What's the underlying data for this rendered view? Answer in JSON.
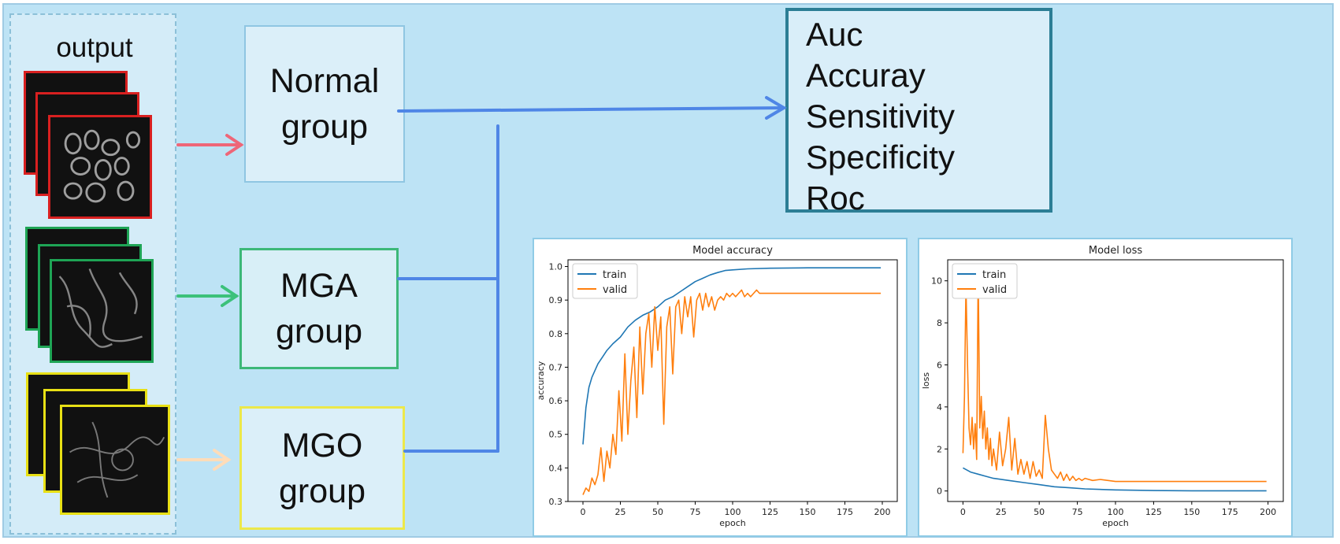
{
  "output_label": "output",
  "groups": {
    "normal": {
      "line1": "Normal",
      "line2": "group"
    },
    "mga": {
      "line1": "MGA",
      "line2": "group"
    },
    "mgo": {
      "line1": "MGO",
      "line2": "group"
    }
  },
  "metrics": [
    "Auc",
    "Accuray",
    "Sensitivity",
    "Specificity",
    "Roc"
  ],
  "colors": {
    "normal_arrow": "#ee6678",
    "mga_arrow": "#3cc17a",
    "mgo_arrow": "#ffdcb8",
    "connector": "#4f86e6",
    "train": "#1f77b4",
    "valid": "#ff7f0e"
  },
  "chart_data": [
    {
      "type": "line",
      "title": "Model accuracy",
      "xlabel": "epoch",
      "ylabel": "accuracy",
      "xlim": [
        -10,
        210
      ],
      "ylim": [
        0.3,
        1.02
      ],
      "xticks": [
        0,
        25,
        50,
        75,
        100,
        125,
        150,
        175,
        200
      ],
      "yticks": [
        0.3,
        0.4,
        0.5,
        0.6,
        0.7,
        0.8,
        0.9,
        1.0
      ],
      "ytick_labels": [
        "0.3",
        "0.4",
        "0.5",
        "0.6",
        "0.7",
        "0.8",
        "0.9",
        "1.0"
      ],
      "legend": "top-left",
      "series": [
        {
          "name": "train",
          "points": [
            [
              0,
              0.47
            ],
            [
              2,
              0.58
            ],
            [
              4,
              0.64
            ],
            [
              6,
              0.67
            ],
            [
              8,
              0.69
            ],
            [
              10,
              0.71
            ],
            [
              13,
              0.73
            ],
            [
              16,
              0.75
            ],
            [
              20,
              0.77
            ],
            [
              25,
              0.79
            ],
            [
              30,
              0.82
            ],
            [
              35,
              0.84
            ],
            [
              40,
              0.855
            ],
            [
              45,
              0.865
            ],
            [
              50,
              0.88
            ],
            [
              55,
              0.9
            ],
            [
              60,
              0.91
            ],
            [
              65,
              0.925
            ],
            [
              70,
              0.94
            ],
            [
              75,
              0.955
            ],
            [
              80,
              0.965
            ],
            [
              85,
              0.975
            ],
            [
              90,
              0.982
            ],
            [
              95,
              0.988
            ],
            [
              100,
              0.99
            ],
            [
              110,
              0.993
            ],
            [
              125,
              0.995
            ],
            [
              150,
              0.996
            ],
            [
              175,
              0.996
            ],
            [
              199,
              0.996
            ]
          ]
        },
        {
          "name": "valid",
          "points": [
            [
              0,
              0.32
            ],
            [
              2,
              0.34
            ],
            [
              4,
              0.33
            ],
            [
              6,
              0.37
            ],
            [
              8,
              0.35
            ],
            [
              10,
              0.38
            ],
            [
              12,
              0.46
            ],
            [
              14,
              0.36
            ],
            [
              16,
              0.45
            ],
            [
              18,
              0.4
            ],
            [
              20,
              0.5
            ],
            [
              22,
              0.44
            ],
            [
              24,
              0.63
            ],
            [
              26,
              0.48
            ],
            [
              28,
              0.74
            ],
            [
              30,
              0.5
            ],
            [
              32,
              0.66
            ],
            [
              34,
              0.76
            ],
            [
              36,
              0.55
            ],
            [
              38,
              0.82
            ],
            [
              40,
              0.62
            ],
            [
              42,
              0.8
            ],
            [
              44,
              0.86
            ],
            [
              46,
              0.7
            ],
            [
              48,
              0.88
            ],
            [
              50,
              0.75
            ],
            [
              52,
              0.85
            ],
            [
              54,
              0.53
            ],
            [
              56,
              0.82
            ],
            [
              58,
              0.88
            ],
            [
              60,
              0.68
            ],
            [
              62,
              0.88
            ],
            [
              64,
              0.9
            ],
            [
              66,
              0.8
            ],
            [
              68,
              0.91
            ],
            [
              70,
              0.85
            ],
            [
              72,
              0.91
            ],
            [
              74,
              0.79
            ],
            [
              76,
              0.9
            ],
            [
              78,
              0.92
            ],
            [
              80,
              0.87
            ],
            [
              82,
              0.92
            ],
            [
              84,
              0.88
            ],
            [
              86,
              0.91
            ],
            [
              88,
              0.87
            ],
            [
              90,
              0.9
            ],
            [
              92,
              0.91
            ],
            [
              94,
              0.9
            ],
            [
              96,
              0.92
            ],
            [
              98,
              0.91
            ],
            [
              100,
              0.92
            ],
            [
              102,
              0.91
            ],
            [
              104,
              0.92
            ],
            [
              106,
              0.93
            ],
            [
              108,
              0.91
            ],
            [
              110,
              0.92
            ],
            [
              112,
              0.91
            ],
            [
              114,
              0.92
            ],
            [
              116,
              0.93
            ],
            [
              118,
              0.92
            ],
            [
              120,
              0.92
            ],
            [
              125,
              0.92
            ],
            [
              130,
              0.92
            ],
            [
              140,
              0.92
            ],
            [
              150,
              0.92
            ],
            [
              160,
              0.92
            ],
            [
              175,
              0.92
            ],
            [
              190,
              0.92
            ],
            [
              199,
              0.92
            ]
          ]
        }
      ]
    },
    {
      "type": "line",
      "title": "Model loss",
      "xlabel": "epoch",
      "ylabel": "loss",
      "xlim": [
        -10,
        210
      ],
      "ylim": [
        -0.5,
        11
      ],
      "xticks": [
        0,
        25,
        50,
        75,
        100,
        125,
        150,
        175,
        200
      ],
      "yticks": [
        0,
        2,
        4,
        6,
        8,
        10
      ],
      "ytick_labels": [
        "0",
        "2",
        "4",
        "6",
        "8",
        "10"
      ],
      "legend": "top-left",
      "series": [
        {
          "name": "train",
          "points": [
            [
              0,
              1.1
            ],
            [
              5,
              0.9
            ],
            [
              10,
              0.8
            ],
            [
              15,
              0.7
            ],
            [
              20,
              0.6
            ],
            [
              30,
              0.5
            ],
            [
              40,
              0.4
            ],
            [
              50,
              0.3
            ],
            [
              60,
              0.2
            ],
            [
              70,
              0.15
            ],
            [
              80,
              0.1
            ],
            [
              100,
              0.05
            ],
            [
              125,
              0.02
            ],
            [
              150,
              0.01
            ],
            [
              175,
              0.01
            ],
            [
              199,
              0.01
            ]
          ]
        },
        {
          "name": "valid",
          "points": [
            [
              0,
              1.8
            ],
            [
              1,
              4.5
            ],
            [
              2,
              9.8
            ],
            [
              3,
              6.0
            ],
            [
              4,
              3.0
            ],
            [
              5,
              2.2
            ],
            [
              6,
              3.5
            ],
            [
              7,
              2.0
            ],
            [
              8,
              3.2
            ],
            [
              9,
              1.5
            ],
            [
              10,
              10.5
            ],
            [
              11,
              3.0
            ],
            [
              12,
              4.5
            ],
            [
              13,
              2.5
            ],
            [
              14,
              3.8
            ],
            [
              15,
              2.0
            ],
            [
              16,
              3.0
            ],
            [
              17,
              1.5
            ],
            [
              18,
              2.5
            ],
            [
              19,
              1.2
            ],
            [
              20,
              2.0
            ],
            [
              22,
              1.0
            ],
            [
              24,
              2.8
            ],
            [
              26,
              1.2
            ],
            [
              28,
              2.0
            ],
            [
              30,
              3.5
            ],
            [
              32,
              1.0
            ],
            [
              34,
              2.5
            ],
            [
              36,
              0.8
            ],
            [
              38,
              1.5
            ],
            [
              40,
              0.8
            ],
            [
              42,
              1.4
            ],
            [
              44,
              0.6
            ],
            [
              46,
              1.4
            ],
            [
              48,
              0.7
            ],
            [
              50,
              1.0
            ],
            [
              52,
              0.6
            ],
            [
              54,
              3.6
            ],
            [
              56,
              2.0
            ],
            [
              58,
              1.0
            ],
            [
              60,
              0.8
            ],
            [
              62,
              0.6
            ],
            [
              64,
              0.9
            ],
            [
              66,
              0.5
            ],
            [
              68,
              0.8
            ],
            [
              70,
              0.5
            ],
            [
              72,
              0.7
            ],
            [
              74,
              0.5
            ],
            [
              76,
              0.6
            ],
            [
              78,
              0.5
            ],
            [
              80,
              0.6
            ],
            [
              85,
              0.5
            ],
            [
              90,
              0.55
            ],
            [
              100,
              0.45
            ],
            [
              110,
              0.45
            ],
            [
              125,
              0.45
            ],
            [
              150,
              0.45
            ],
            [
              175,
              0.45
            ],
            [
              199,
              0.45
            ]
          ]
        }
      ]
    }
  ]
}
